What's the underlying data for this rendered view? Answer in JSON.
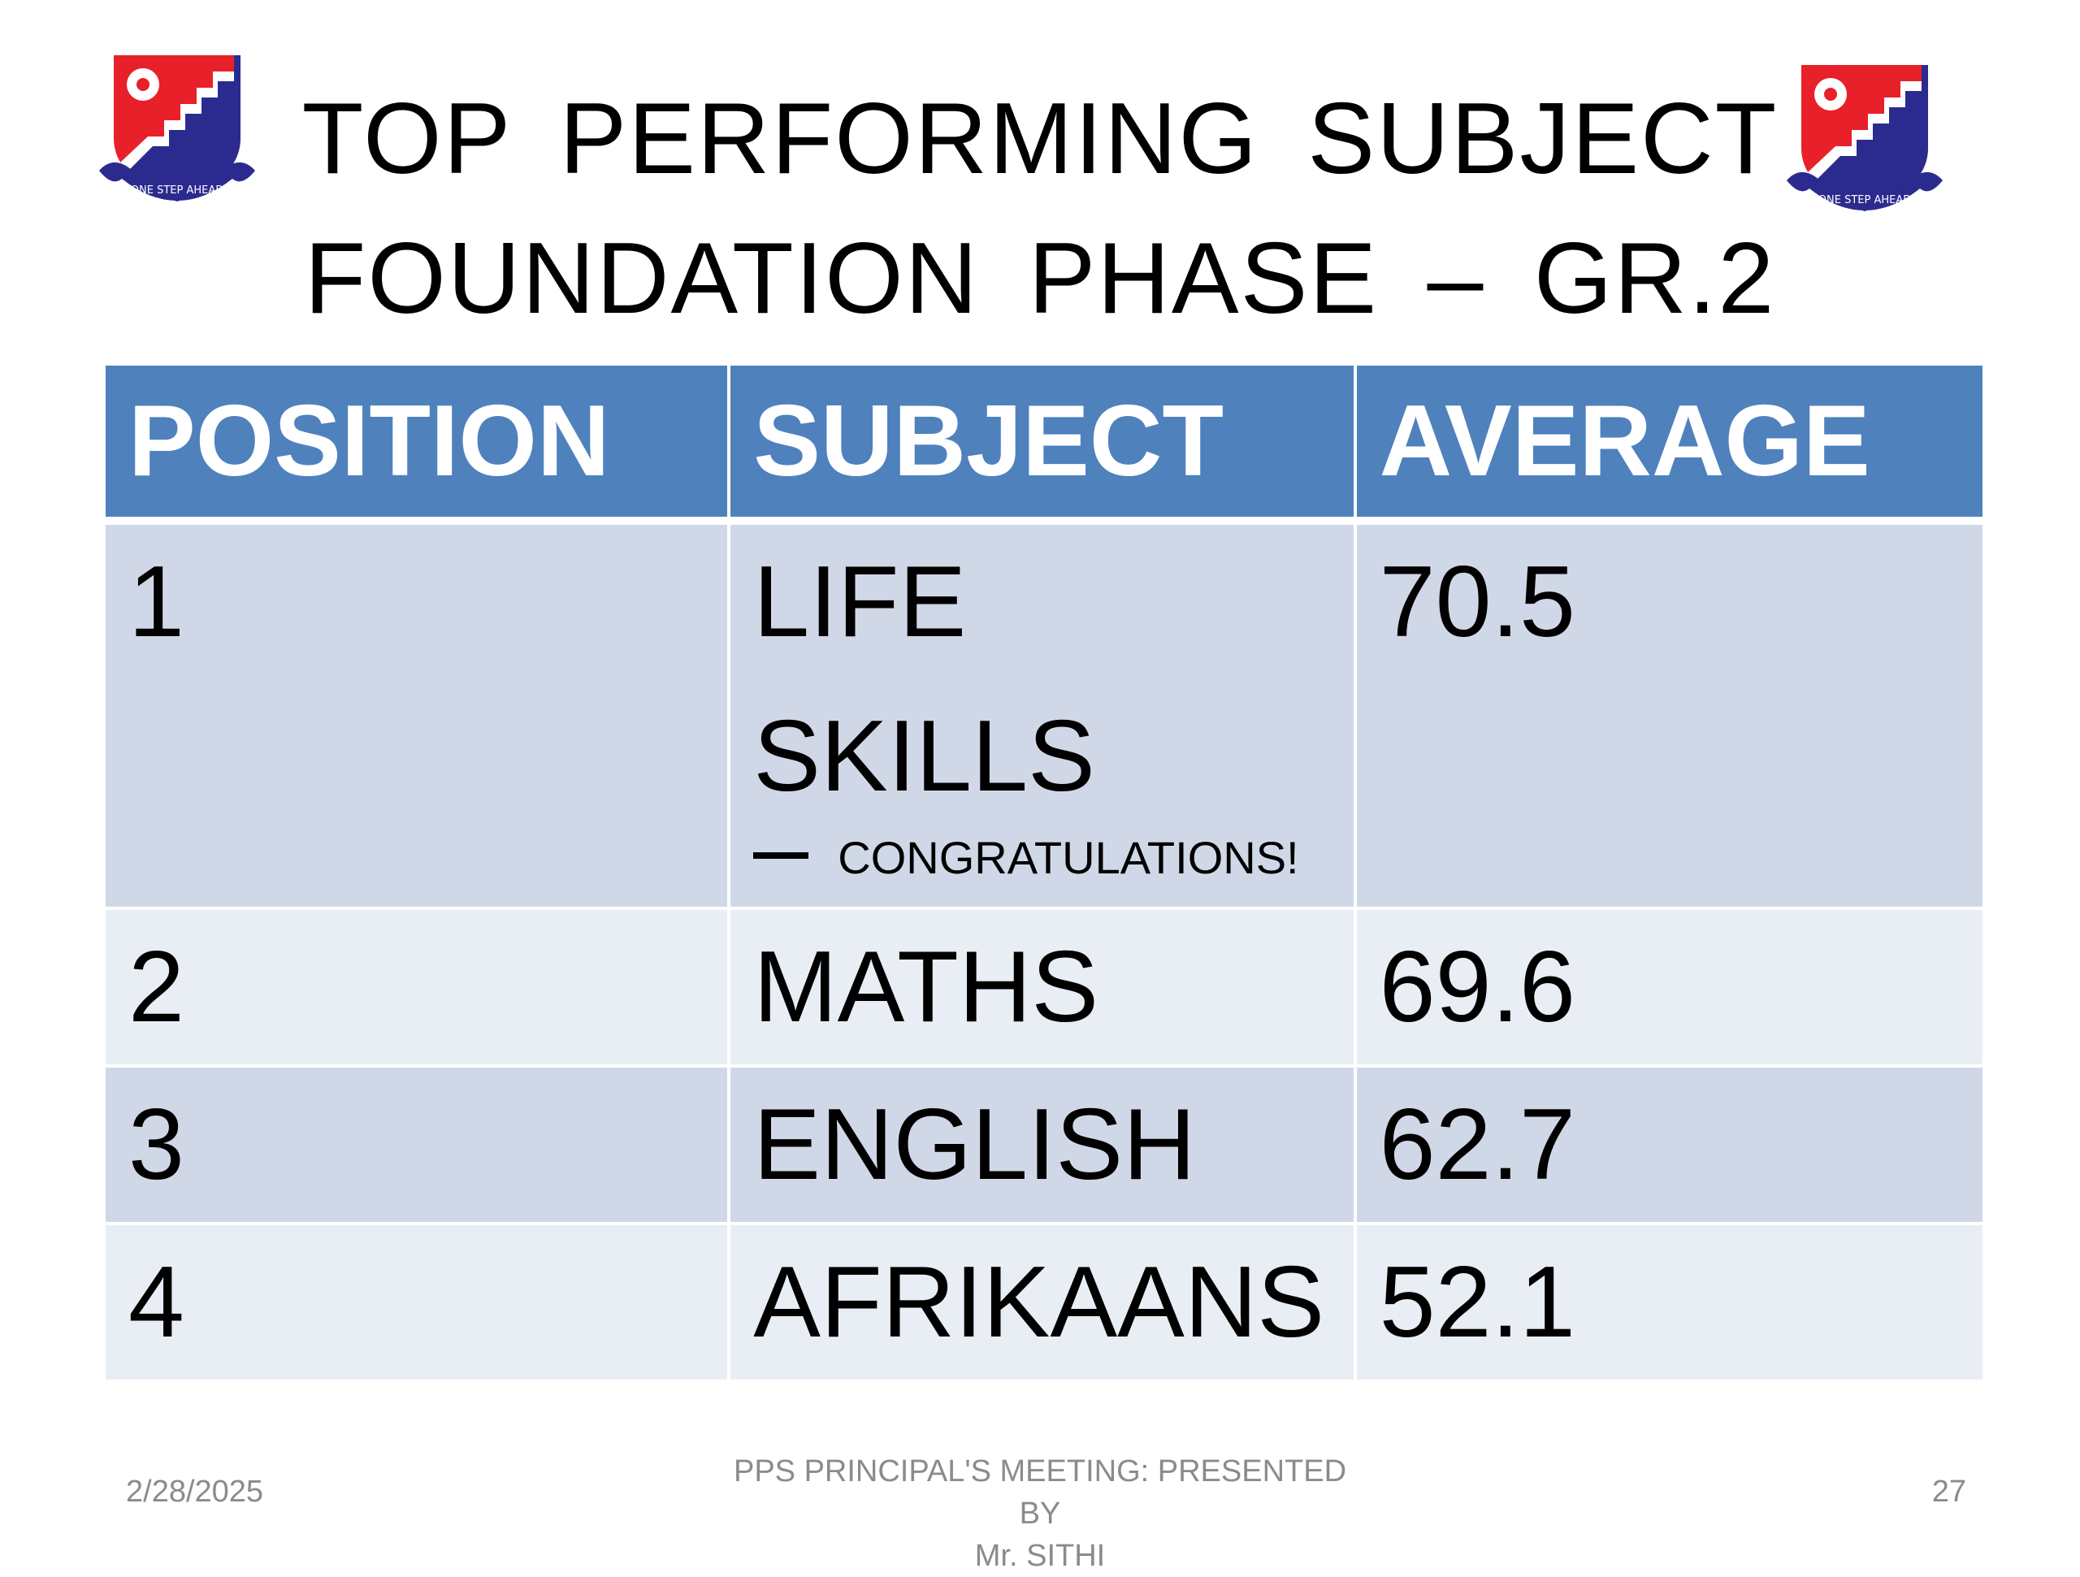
{
  "slide": {
    "title_line1": "TOP  PERFORMING  SUBJECT",
    "title_line2": "FOUNDATION  PHASE – GR.2",
    "logo_left": {
      "name": "school-crest",
      "motto": "ONE STEP AHEAD"
    },
    "logo_right": {
      "name": "school-crest",
      "motto": "ONE STEP AHEAD"
    }
  },
  "table": {
    "headers": [
      "POSITION",
      "SUBJECT",
      "AVERAGE"
    ],
    "rows": [
      {
        "position": "1",
        "subject": "LIFE   SKILLS",
        "note": "CONGRATULATIONS!",
        "average": "70.5"
      },
      {
        "position": "2",
        "subject": "MATHS",
        "note": "",
        "average": "69.6"
      },
      {
        "position": "3",
        "subject": "ENGLISH",
        "note": "",
        "average": "62.7"
      },
      {
        "position": "4",
        "subject": "AFRIKAANS",
        "note": "",
        "average": "52.1"
      }
    ]
  },
  "footer": {
    "date": "2/28/2025",
    "center_line1": "PPS  PRINCIPAL'S MEETING: PRESENTED  BY",
    "center_line2": "Mr. SITHI",
    "page": "27"
  },
  "colors": {
    "header_blue": "#4f81bd",
    "row_dark": "#d0d8e8",
    "row_light": "#e9edf4",
    "crest_red": "#e8202a",
    "crest_blue": "#2b2b8f"
  }
}
